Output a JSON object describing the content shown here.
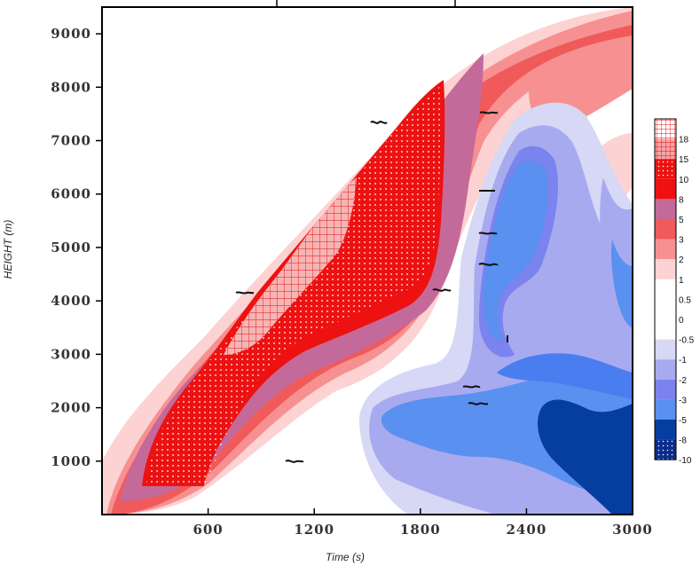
{
  "chart_data": {
    "type": "heatmap",
    "xlabel": "Time (s)",
    "ylabel": "HEIGHT (m)",
    "xlim": [
      0,
      3000
    ],
    "ylim": [
      0,
      9500
    ],
    "xticks": [
      600,
      1200,
      1800,
      2400,
      3000
    ],
    "yticks": [
      1000,
      2000,
      3000,
      4000,
      5000,
      6000,
      7000,
      8000,
      9000
    ],
    "colorbar": {
      "levels": [
        "18",
        "15",
        "10",
        "8",
        "5",
        "3",
        "2",
        "1",
        "0.5",
        "0",
        "-0.5",
        "-1",
        "-2",
        "-3",
        "-5",
        "-8",
        "-10"
      ],
      "colors": [
        "#ffffff",
        "#f4a6a6",
        "#ee1111",
        "#ee1111",
        "#c46a9a",
        "#f05a5a",
        "#f79090",
        "#fcd2d2",
        "#ffffff",
        "#ffffff",
        "#ffffff",
        "#d6d8f5",
        "#a8aaf0",
        "#7b83ee",
        "#5a90f0",
        "#063ea0",
        "#0a2d8c"
      ],
      "patterns": [
        "grid",
        "grid",
        "dots",
        "none",
        "none",
        "none",
        "none",
        "none",
        "none",
        "none",
        "none",
        "none",
        "none",
        "none",
        "none",
        "none",
        "dots"
      ]
    },
    "max_region": {
      "values_range": [
        10,
        18
      ],
      "time_span": [
        450,
        1900
      ],
      "height_span": [
        800,
        8300
      ]
    },
    "min_region": {
      "values_range": [
        -8,
        -5
      ],
      "time_span": [
        2500,
        3000
      ],
      "height_span": [
        300,
        2300
      ]
    }
  }
}
